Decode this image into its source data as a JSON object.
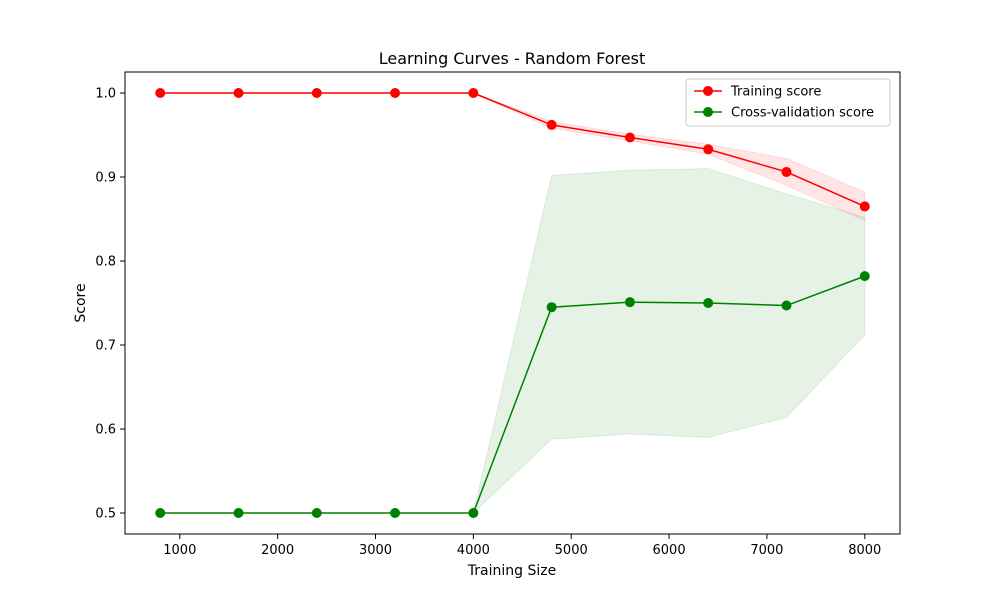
{
  "chart_data": {
    "type": "line",
    "title": "Learning Curves - Random Forest",
    "xlabel": "Training Size",
    "ylabel": "Score",
    "x": [
      800,
      1600,
      2400,
      3200,
      4000,
      4800,
      5600,
      6400,
      7200,
      8000
    ],
    "xlim": [
      440,
      8360
    ],
    "ylim": [
      0.475,
      1.025
    ],
    "xticks": [
      1000,
      2000,
      3000,
      4000,
      5000,
      6000,
      7000,
      8000
    ],
    "xtick_labels": [
      "1000",
      "2000",
      "3000",
      "4000",
      "5000",
      "6000",
      "7000",
      "8000"
    ],
    "yticks": [
      0.5,
      0.6,
      0.7,
      0.8,
      0.9,
      1.0
    ],
    "ytick_labels": [
      "0.5",
      "0.6",
      "0.7",
      "0.8",
      "0.9",
      "1.0"
    ],
    "grid": false,
    "legend_position": "top-right",
    "series": [
      {
        "name": "Training score",
        "color": "#ff0000",
        "marker": "circle",
        "values": [
          1.0,
          1.0,
          1.0,
          1.0,
          1.0,
          0.962,
          0.947,
          0.933,
          0.906,
          0.865
        ],
        "band_upper": [
          1.0,
          1.0,
          1.0,
          1.0,
          1.0,
          0.966,
          0.951,
          0.939,
          0.922,
          0.882
        ],
        "band_lower": [
          1.0,
          1.0,
          1.0,
          1.0,
          1.0,
          0.958,
          0.943,
          0.927,
          0.89,
          0.848
        ],
        "band_color": "#ff0000",
        "band_opacity": 0.1
      },
      {
        "name": "Cross-validation score",
        "color": "#008000",
        "marker": "circle",
        "values": [
          0.5,
          0.5,
          0.5,
          0.5,
          0.5,
          0.745,
          0.751,
          0.75,
          0.747,
          0.782
        ],
        "band_upper": [
          0.5,
          0.5,
          0.5,
          0.5,
          0.5,
          0.902,
          0.908,
          0.91,
          0.88,
          0.852
        ],
        "band_lower": [
          0.5,
          0.5,
          0.5,
          0.5,
          0.5,
          0.588,
          0.594,
          0.59,
          0.614,
          0.712
        ],
        "band_color": "#008000",
        "band_opacity": 0.1
      }
    ]
  }
}
